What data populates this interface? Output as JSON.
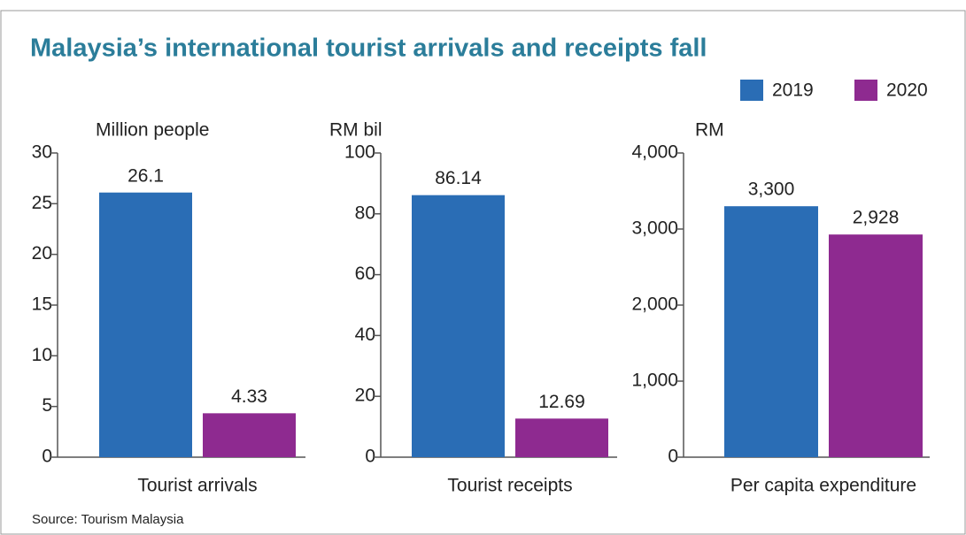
{
  "title": "Malaysia’s international tourist arrivals and receipts fall",
  "source": "Source: Tourism Malaysia",
  "chart_data": [
    {
      "type": "bar",
      "ylabel": "Million people",
      "categories": [
        "Tourist arrivals"
      ],
      "series": [
        {
          "name": "2019",
          "color": "#2a6db5",
          "values": [
            26.1
          ]
        },
        {
          "name": "2020",
          "color": "#8e2a90",
          "values": [
            4.33
          ]
        }
      ],
      "ylim": [
        0,
        30
      ],
      "yticks": [
        0,
        5,
        10,
        15,
        20,
        25,
        30
      ]
    },
    {
      "type": "bar",
      "ylabel": "RM bil",
      "categories": [
        "Tourist receipts"
      ],
      "series": [
        {
          "color": "#2a6db5",
          "values": [
            86.14
          ]
        },
        {
          "color": "#8e2a90",
          "values": [
            12.69
          ]
        }
      ],
      "ylim": [
        0,
        100
      ],
      "yticks": [
        0,
        20,
        40,
        60,
        80,
        100
      ]
    },
    {
      "type": "bar",
      "ylabel": "RM",
      "categories": [
        "Per capita expenditure"
      ],
      "series": [
        {
          "color": "#2a6db5",
          "values": [
            3300
          ],
          "value_labels": [
            "3,300"
          ]
        },
        {
          "color": "#8e2a90",
          "values": [
            2928
          ],
          "value_labels": [
            "2,928"
          ]
        }
      ],
      "ylim": [
        0,
        4000
      ],
      "yticks": [
        0,
        {
          "value": 1000,
          "label": "1,000"
        },
        {
          "value": 2000,
          "label": "2,000"
        },
        {
          "value": 3000,
          "label": "3,000"
        },
        {
          "value": 4000,
          "label": "4,000"
        }
      ]
    }
  ]
}
